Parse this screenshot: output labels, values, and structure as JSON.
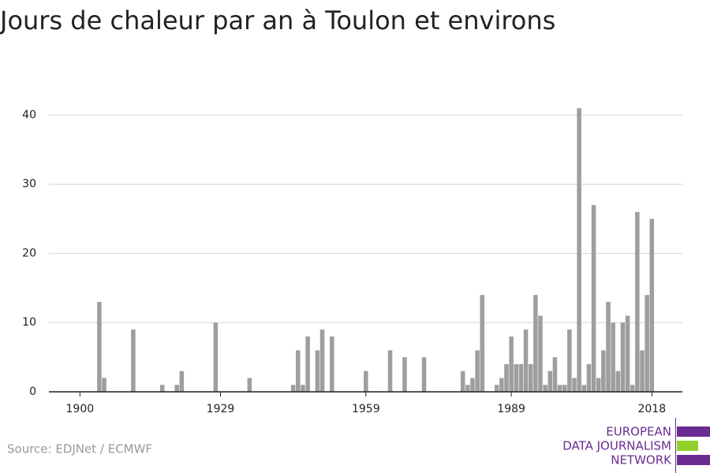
{
  "chart_data": {
    "type": "bar",
    "title": "Jours de chaleur par an à Toulon et environs",
    "source": "Source: EDJNet / ECMWF",
    "logo": [
      "EUROPEAN",
      "DATA JOURNALISM",
      "NETWORK"
    ],
    "x": [
      1900,
      1901,
      1902,
      1903,
      1904,
      1905,
      1906,
      1907,
      1908,
      1909,
      1910,
      1911,
      1912,
      1913,
      1914,
      1915,
      1916,
      1917,
      1918,
      1919,
      1920,
      1921,
      1922,
      1923,
      1924,
      1925,
      1926,
      1927,
      1928,
      1929,
      1930,
      1931,
      1932,
      1933,
      1934,
      1935,
      1936,
      1937,
      1938,
      1939,
      1940,
      1941,
      1942,
      1943,
      1944,
      1945,
      1946,
      1947,
      1948,
      1949,
      1950,
      1951,
      1952,
      1953,
      1954,
      1955,
      1956,
      1957,
      1958,
      1959,
      1960,
      1961,
      1962,
      1963,
      1964,
      1965,
      1966,
      1967,
      1968,
      1969,
      1970,
      1971,
      1972,
      1973,
      1974,
      1975,
      1976,
      1977,
      1978,
      1979,
      1980,
      1981,
      1982,
      1983,
      1984,
      1985,
      1986,
      1987,
      1988,
      1989,
      1990,
      1991,
      1992,
      1993,
      1994,
      1995,
      1996,
      1997,
      1998,
      1999,
      2000,
      2001,
      2002,
      2003,
      2004,
      2005,
      2006,
      2007,
      2008,
      2009,
      2010,
      2011,
      2012,
      2013,
      2014,
      2015,
      2016,
      2017,
      2018
    ],
    "values": [
      0,
      0,
      0,
      0,
      13,
      2,
      0,
      0,
      0,
      0,
      0,
      9,
      0,
      0,
      0,
      0,
      0,
      1,
      0,
      0,
      1,
      3,
      0,
      0,
      0,
      0,
      0,
      0,
      10,
      0,
      0,
      0,
      0,
      0,
      0,
      2,
      0,
      0,
      0,
      0,
      0,
      0,
      0,
      0,
      1,
      6,
      1,
      8,
      0,
      6,
      9,
      0,
      8,
      0,
      0,
      0,
      0,
      0,
      0,
      3,
      0,
      0,
      0,
      0,
      6,
      0,
      0,
      5,
      0,
      0,
      0,
      5,
      0,
      0,
      0,
      0,
      0,
      0,
      0,
      3,
      1,
      2,
      6,
      14,
      0,
      0,
      1,
      2,
      4,
      8,
      4,
      4,
      9,
      4,
      14,
      11,
      1,
      3,
      5,
      1,
      1,
      9,
      2,
      41,
      1,
      4,
      27,
      2,
      6,
      13,
      10,
      3,
      10,
      11,
      1,
      26,
      6,
      14,
      25
    ],
    "color": "#9e9e9e",
    "xlim": [
      1893.6,
      2024.3
    ],
    "xticks": [
      1900,
      1929,
      1959,
      1989,
      2018
    ],
    "ylim": [
      0,
      41
    ],
    "yticks": [
      0,
      10,
      20,
      30,
      40
    ],
    "grid": true
  }
}
